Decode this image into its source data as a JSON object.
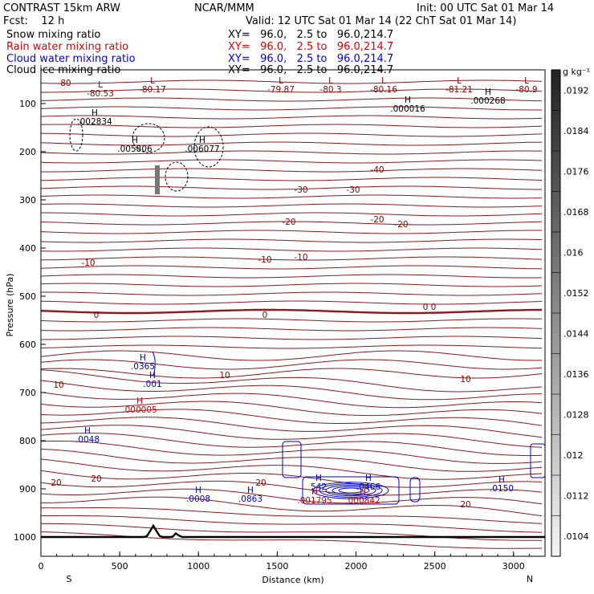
{
  "header": {
    "line1_left": "CONTRAST 15km ARW",
    "line1_center": "NCAR/MMM",
    "line1_right": "Init: 00 UTC Sat 01 Mar 14",
    "line2_left": "Fcst:    12 h",
    "line2_right": "Valid: 12 UTC Sat 01 Mar 14 (22 ChT Sat 01 Mar 14)",
    "xy_text": "XY=   96.0,   2.5 to   96.0,214.7"
  },
  "fields": [
    {
      "name": "Snow mixing ratio",
      "color": "#000000"
    },
    {
      "name": "Rain water mixing ratio",
      "color": "#e00000"
    },
    {
      "name": "Cloud water mixing ratio",
      "color": "#0000e0"
    },
    {
      "name": "Cloud ice mixing ratio",
      "color": "#000000"
    }
  ],
  "chart_data": {
    "type": "contour",
    "xlabel": "Distance (km)",
    "ylabel": "Pressure (hPa)",
    "xlim": [
      0,
      3200
    ],
    "ylim": [
      1040,
      30
    ],
    "x_ticks": [
      0,
      500,
      1000,
      1500,
      2000,
      2500,
      3000
    ],
    "y_ticks": [
      100,
      200,
      300,
      400,
      500,
      600,
      700,
      800,
      900,
      1000
    ],
    "end_labels": {
      "left": "S",
      "right": "N"
    },
    "colorbar": {
      "unit": "g kg⁻¹",
      "ticks": [
        ".0192",
        ".0184",
        ".0176",
        ".0168",
        ".016",
        ".0152",
        ".0144",
        ".0136",
        ".0128",
        ".012",
        ".0112",
        ".0104"
      ]
    },
    "temperature_contours": [
      {
        "p": 62,
        "t": "-80"
      },
      {
        "p": 215,
        "t": "-40"
      },
      {
        "p": 245,
        "t": "-30"
      },
      {
        "p": 280,
        "t": "-20"
      },
      {
        "p": 337,
        "t": "-10"
      },
      {
        "p": 385,
        "t": "0"
      },
      {
        "p": 505,
        "t": "10"
      },
      {
        "p": 570,
        "t": "20"
      }
    ],
    "contour_labels": [
      {
        "x": 80,
        "p": 107,
        "text": "-80"
      },
      {
        "x": 470,
        "p": 215,
        "text": "-40"
      },
      {
        "x": 440,
        "p": 240,
        "text": "-30"
      },
      {
        "x": 375,
        "p": 240,
        "text": "-30"
      },
      {
        "x": 470,
        "p": 277,
        "text": "-20"
      },
      {
        "x": 360,
        "p": 280,
        "text": "-20"
      },
      {
        "x": 500,
        "p": 283,
        "text": "-20"
      },
      {
        "x": 110,
        "p": 331,
        "text": "-10"
      },
      {
        "x": 330,
        "p": 327,
        "text": "-10"
      },
      {
        "x": 375,
        "p": 324,
        "text": "-10"
      },
      {
        "x": 330,
        "p": 396,
        "text": "0"
      },
      {
        "x": 120,
        "p": 396,
        "text": "0"
      },
      {
        "x": 530,
        "p": 386,
        "text": "0"
      },
      {
        "x": 540,
        "p": 386,
        "text": "0"
      },
      {
        "x": 280,
        "p": 471,
        "text": "10"
      },
      {
        "x": 73,
        "p": 483,
        "text": "10"
      },
      {
        "x": 580,
        "p": 476,
        "text": "10"
      },
      {
        "x": 120,
        "p": 600,
        "text": "20"
      },
      {
        "x": 70,
        "p": 605,
        "text": "20"
      },
      {
        "x": 325,
        "p": 605,
        "text": "20"
      },
      {
        "x": 580,
        "p": 632,
        "text": "20"
      }
    ],
    "extrema": [
      {
        "kind": "L",
        "x": 125,
        "p": 120,
        "val": "-80.53",
        "color": "#8b0000"
      },
      {
        "kind": "L",
        "x": 190,
        "p": 115,
        "val": "-80.17",
        "color": "#8b0000"
      },
      {
        "kind": "L",
        "x": 350,
        "p": 115,
        "val": "-79.87",
        "color": "#8b0000"
      },
      {
        "kind": "L",
        "x": 412,
        "p": 115,
        "val": "-80.3",
        "color": "#8b0000"
      },
      {
        "kind": "L",
        "x": 478,
        "p": 115,
        "val": "-80.16",
        "color": "#8b0000"
      },
      {
        "kind": "L",
        "x": 572,
        "p": 115,
        "val": "-81.21",
        "color": "#8b0000"
      },
      {
        "kind": "L",
        "x": 656,
        "p": 115,
        "val": "-80.9",
        "color": "#8b0000"
      },
      {
        "kind": "H",
        "x": 118,
        "p": 155,
        "val": ".002834",
        "color": "#000000"
      },
      {
        "kind": "H",
        "x": 168,
        "p": 189,
        "val": ".005806",
        "color": "#000000"
      },
      {
        "kind": "H",
        "x": 252,
        "p": 189,
        "val": ".006077",
        "color": "#000000"
      },
      {
        "kind": "H",
        "x": 508,
        "p": 139,
        "val": ".000016",
        "color": "#000000"
      },
      {
        "kind": "H",
        "x": 608,
        "p": 129,
        "val": ".000268",
        "color": "#000000"
      },
      {
        "kind": "H",
        "x": 178,
        "p": 460,
        "val": ".0365",
        "color": "#0000cc"
      },
      {
        "kind": "H",
        "x": 190,
        "p": 482,
        "val": ".001",
        "color": "#0000cc"
      },
      {
        "kind": "H",
        "x": 174,
        "p": 514,
        "val": ".000005",
        "color": "#cc0000"
      },
      {
        "kind": "H",
        "x": 109,
        "p": 551,
        "val": ".0048",
        "color": "#0000cc"
      },
      {
        "kind": "H",
        "x": 247,
        "p": 625,
        "val": ".0008",
        "color": "#0000cc"
      },
      {
        "kind": "H",
        "x": 312,
        "p": 625,
        "val": ".0863",
        "color": "#0000cc"
      },
      {
        "kind": "H",
        "x": 397,
        "p": 610,
        "val": "542",
        "color": "#0000cc"
      },
      {
        "kind": "H",
        "x": 459,
        "p": 610,
        "val": ".0466",
        "color": "#0000cc"
      },
      {
        "kind": "H",
        "x": 392,
        "p": 627,
        "val": ".001795",
        "color": "#cc0000"
      },
      {
        "kind": "H",
        "x": 452,
        "p": 627,
        "val": ".000842",
        "color": "#cc0000"
      },
      {
        "kind": "H",
        "x": 625,
        "p": 612,
        "val": ".0150",
        "color": "#0000cc"
      }
    ]
  }
}
